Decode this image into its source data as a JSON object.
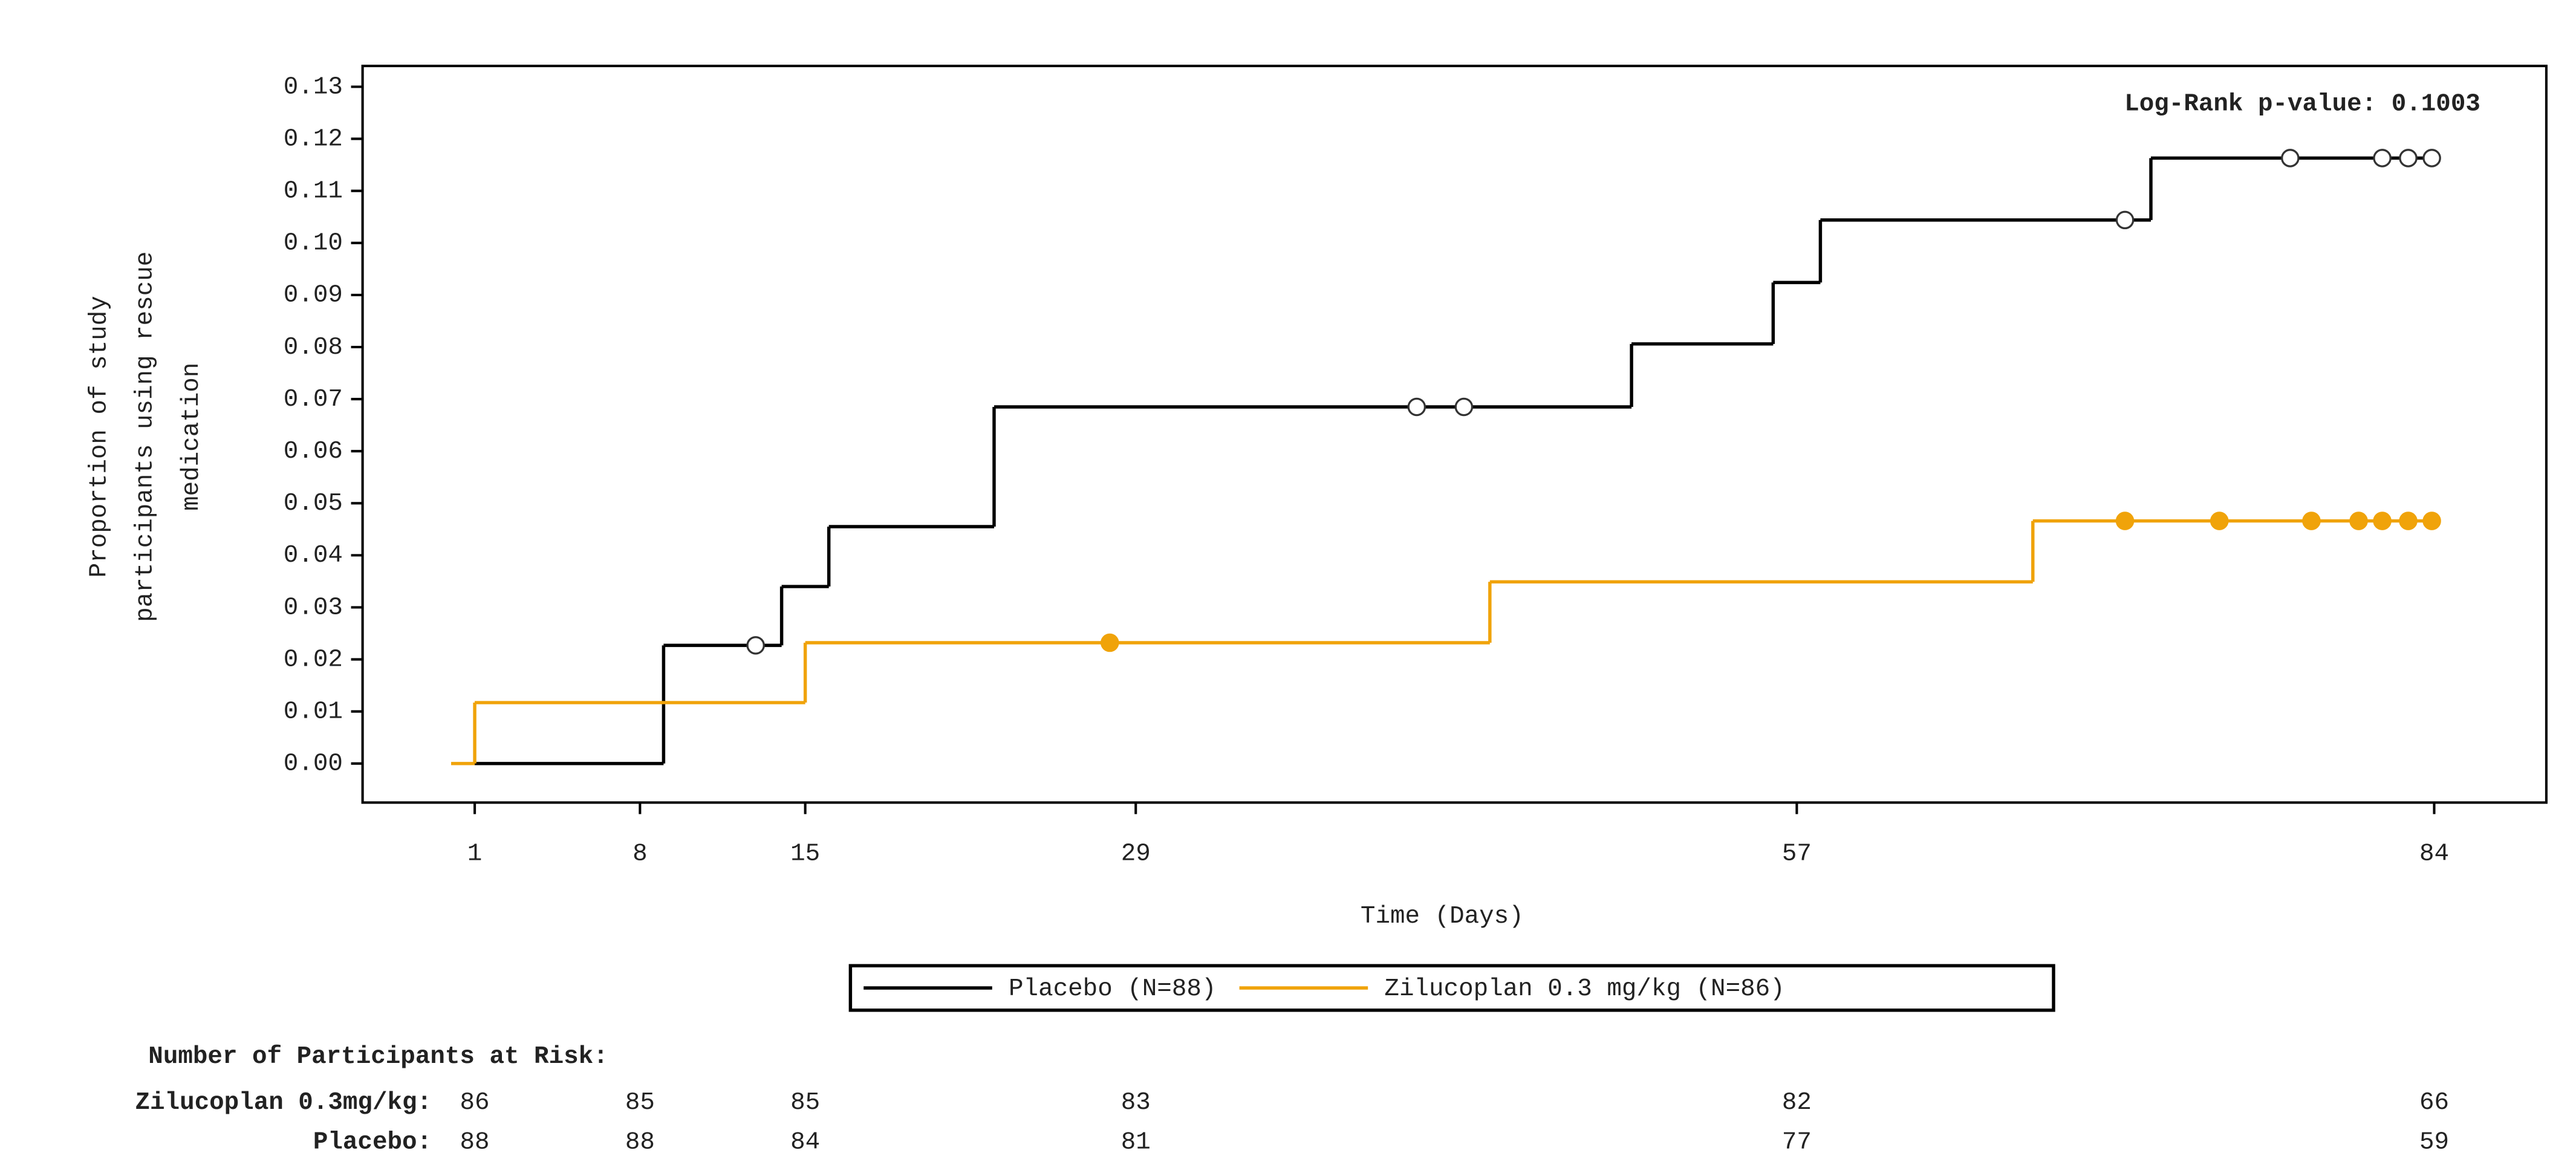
{
  "chart_data": {
    "type": "step",
    "x_label": "Time (Days)",
    "y_label": [
      "Proportion of study",
      "participants using rescue",
      "medication"
    ],
    "annotation": "Log-Rank p-value: 0.1003",
    "xlim": [
      -3.75,
      88.75
    ],
    "ylim": [
      -0.0075,
      0.134
    ],
    "xticks": [
      1,
      8,
      15,
      29,
      57,
      84
    ],
    "yticks": [
      {
        "value": 0.0,
        "label": "0.00"
      },
      {
        "value": 0.01,
        "label": "0.01"
      },
      {
        "value": 0.02,
        "label": "0.02"
      },
      {
        "value": 0.03,
        "label": "0.03"
      },
      {
        "value": 0.04,
        "label": "0.04"
      },
      {
        "value": 0.05,
        "label": "0.05"
      },
      {
        "value": 0.06,
        "label": "0.06"
      },
      {
        "value": 0.07,
        "label": "0.07"
      },
      {
        "value": 0.08,
        "label": "0.08"
      },
      {
        "value": 0.09,
        "label": "0.09"
      },
      {
        "value": 0.1,
        "label": "0.10"
      },
      {
        "value": 0.11,
        "label": "0.11"
      },
      {
        "value": 0.12,
        "label": "0.12"
      },
      {
        "value": 0.13,
        "label": "0.13"
      }
    ],
    "series": [
      {
        "name": "Placebo (N=88)",
        "color": "#000000",
        "marker": "open",
        "x": [
          1,
          9,
          14,
          16,
          23,
          50,
          56,
          58,
          72,
          84
        ],
        "values": [
          0,
          0.0227,
          0.034,
          0.0455,
          0.0685,
          0.0806,
          0.0924,
          0.1044,
          0.1163,
          0.1163
        ],
        "censored": {
          "x": [
            12.9,
            40.9,
            42.9,
            70.9,
            77.9,
            81.8,
            82.9,
            83.9
          ],
          "values": [
            0.0227,
            0.0685,
            0.0685,
            0.1044,
            0.1163,
            0.1163,
            0.1163,
            0.1163
          ]
        }
      },
      {
        "name": "Zilucoplan 0.3 mg/kg (N=86)",
        "color": "#f0a30a",
        "marker": "filled",
        "x": [
          0,
          1,
          15,
          44,
          67,
          84
        ],
        "values": [
          0,
          0.0117,
          0.0232,
          0.0349,
          0.0466,
          0.0466
        ],
        "censored": {
          "x": [
            27.9,
            70.9,
            74.9,
            78.8,
            80.8,
            81.8,
            82.9,
            83.9
          ],
          "values": [
            0.0232,
            0.0466,
            0.0466,
            0.0466,
            0.0466,
            0.0466,
            0.0466,
            0.0466
          ]
        }
      }
    ],
    "risk_table": {
      "title": "Number of Participants at Risk:",
      "rows": [
        {
          "label": "Zilucoplan 0.3mg/kg:",
          "values": [
            86,
            85,
            85,
            83,
            82,
            66
          ]
        },
        {
          "label": "Placebo:",
          "values": [
            88,
            88,
            84,
            81,
            77,
            59
          ]
        }
      ]
    }
  }
}
